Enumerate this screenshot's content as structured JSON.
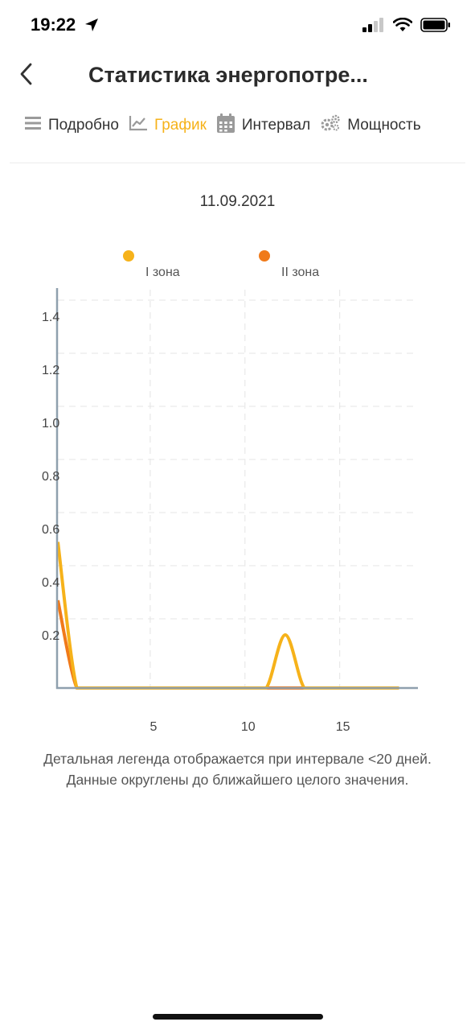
{
  "status_bar": {
    "time": "19:22"
  },
  "header": {
    "title": "Статистика энергопотре..."
  },
  "tabs": [
    {
      "id": "details",
      "label": "Подробно",
      "icon": "list-icon"
    },
    {
      "id": "chart",
      "label": "График",
      "icon": "chart-line-icon",
      "active": true
    },
    {
      "id": "interval",
      "label": "Интервал",
      "icon": "calendar-icon"
    },
    {
      "id": "power",
      "label": "Мощность",
      "icon": "gears-icon"
    }
  ],
  "chart": {
    "date": "11.09.2021"
  },
  "chart_data": {
    "type": "line",
    "xlim": [
      0,
      19
    ],
    "ylim": [
      0,
      1.5
    ],
    "x_ticks": [
      5,
      10,
      15
    ],
    "y_ticks": [
      0.2,
      0.4,
      0.6,
      0.8,
      1.0,
      1.2,
      1.4
    ],
    "legend_placement": "top",
    "grid": true,
    "series": [
      {
        "name": "I зона",
        "color": "#f6b21a",
        "x": [
          0,
          1,
          2,
          3,
          4,
          5,
          6,
          7,
          8,
          9,
          10,
          11,
          12,
          13,
          14,
          15,
          16,
          17,
          18
        ],
        "y": [
          0.55,
          0,
          0,
          0,
          0,
          0,
          0,
          0,
          0,
          0,
          0,
          0,
          0.2,
          0,
          0,
          0,
          0,
          0,
          0
        ]
      },
      {
        "name": "II зона",
        "color": "#f07a1a",
        "x": [
          0,
          1,
          2,
          3,
          4,
          5,
          6,
          7,
          8,
          9,
          10,
          11,
          12,
          13,
          14,
          15,
          16,
          17,
          18
        ],
        "y": [
          0.33,
          0,
          0,
          0,
          0,
          0,
          0,
          0,
          0,
          0,
          0,
          0,
          0,
          0,
          0,
          0,
          0,
          0,
          0
        ]
      }
    ]
  },
  "footnote": {
    "line1": "Детальная легенда отображается при интервале <20 дней.",
    "line2": "Данные округлены до ближайшего целого значения."
  }
}
